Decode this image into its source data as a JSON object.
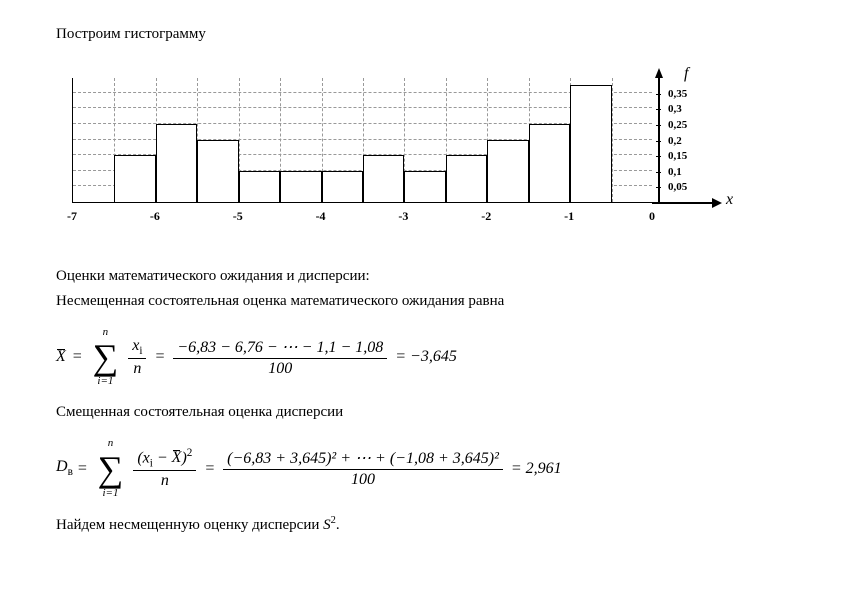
{
  "heading": "Построим гистограмму",
  "histogram": {
    "type": "histogram",
    "x_axis_label": "x",
    "y_axis_label": "f",
    "xlim": [
      -7,
      0
    ],
    "ylim": [
      0,
      0.4
    ],
    "x_ticks": [
      -7,
      -6,
      -5,
      -4,
      -3,
      -2,
      -1,
      0
    ],
    "y_ticks": [
      0.05,
      0.1,
      0.15,
      0.2,
      0.25,
      0.3,
      0.35
    ],
    "y_tick_labels": [
      "0,05",
      "0,1",
      "0,15",
      "0,2",
      "0,25",
      "0,3",
      "0,35"
    ],
    "bar_half_width": true,
    "grid_style": "dashed",
    "grid_color": "#999999",
    "background_color": "#ffffff",
    "bar_color": "#ffffff",
    "bar_border": "#000000",
    "axis_color": "#000000",
    "x_label_fontsize": 12,
    "y_label_fontsize": 11,
    "bars": [
      {
        "x0": -6.5,
        "x1": -6.0,
        "f": 0.15
      },
      {
        "x0": -6.0,
        "x1": -5.5,
        "f": 0.25
      },
      {
        "x0": -5.5,
        "x1": -5.0,
        "f": 0.2
      },
      {
        "x0": -5.0,
        "x1": -4.5,
        "f": 0.1
      },
      {
        "x0": -4.5,
        "x1": -4.0,
        "f": 0.1
      },
      {
        "x0": -4.0,
        "x1": -3.5,
        "f": 0.1
      },
      {
        "x0": -3.5,
        "x1": -3.0,
        "f": 0.15
      },
      {
        "x0": -3.0,
        "x1": -2.5,
        "f": 0.1
      },
      {
        "x0": -2.5,
        "x1": -2.0,
        "f": 0.15
      },
      {
        "x0": -2.0,
        "x1": -1.5,
        "f": 0.2
      },
      {
        "x0": -1.5,
        "x1": -1.0,
        "f": 0.25
      },
      {
        "x0": -1.0,
        "x1": -0.5,
        "f": 0.375
      }
    ]
  },
  "section2": {
    "line1": "Оценки математического ожидания и дисперсии:",
    "line2": "Несмещенная состоятельная оценка математического ожидания равна"
  },
  "formula_xbar": {
    "lhs": "X",
    "sum_top": "n",
    "sum_bot": "i=1",
    "frac1_num": "x",
    "frac1_num_sub": "i",
    "frac1_den": "n",
    "frac2_num": "−6,83 − 6,76 − ⋯ − 1,1 − 1,08",
    "frac2_den": "100",
    "result": "= −3,645"
  },
  "section3": {
    "line1": "Смещенная состоятельная оценка дисперсии"
  },
  "formula_d": {
    "lhs_main": "D",
    "lhs_sub": "в",
    "sum_top": "n",
    "sum_bot": "i=1",
    "frac1_num_a": "(x",
    "frac1_num_sub": "i",
    "frac1_num_b": " − ",
    "frac1_num_c": "X",
    "frac1_num_d": ")",
    "frac1_num_sup": "2",
    "frac1_den": "n",
    "frac2_num": "(−6,83 + 3,645)² + ⋯ + (−1,08 + 3,645)²",
    "frac2_den": "100",
    "result": "= 2,961"
  },
  "section4": {
    "line1_a": "Найдем несмещенную оценку дисперсии ",
    "line1_var": "S",
    "line1_sup": "2",
    "line1_end": "."
  }
}
